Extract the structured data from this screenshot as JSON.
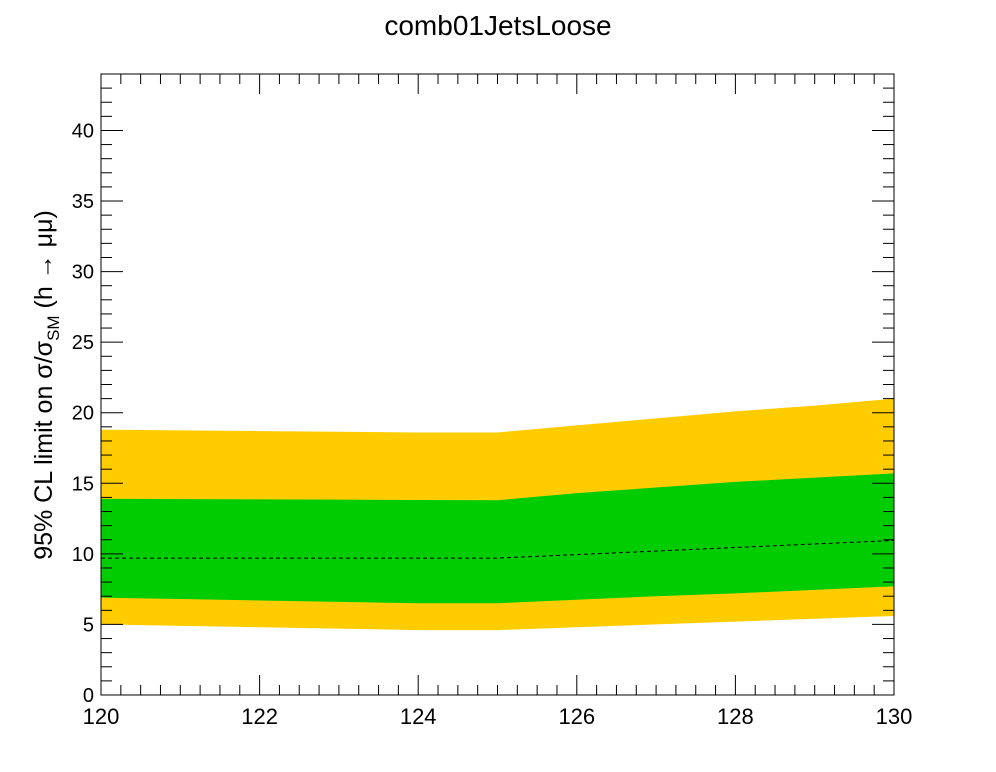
{
  "chart_data": {
    "type": "area",
    "title": "comb01JetsLoose",
    "ylabel_parts": {
      "prefix": "95% CL limit on σ/σ",
      "subscript": "SM",
      "suffix": " (h → μμ)"
    },
    "xlabel": "",
    "xlim": [
      120,
      130
    ],
    "ylim": [
      0,
      44
    ],
    "x_ticks": [
      120,
      122,
      124,
      126,
      128,
      130
    ],
    "y_ticks": [
      0,
      5,
      10,
      15,
      20,
      25,
      30,
      35,
      40
    ],
    "grid": false,
    "x": [
      120,
      121,
      122,
      123,
      124,
      125,
      126,
      127,
      128,
      129,
      130
    ],
    "series": [
      {
        "role": "band_2sigma",
        "color": "#ffcc00",
        "lower": [
          5.0,
          4.9,
          4.8,
          4.7,
          4.6,
          4.6,
          4.8,
          5.0,
          5.2,
          5.4,
          5.6
        ],
        "upper": [
          18.8,
          18.75,
          18.7,
          18.65,
          18.6,
          18.6,
          19.1,
          19.6,
          20.1,
          20.5,
          21.0
        ]
      },
      {
        "role": "band_1sigma",
        "color": "#00cc00",
        "lower": [
          6.9,
          6.8,
          6.7,
          6.6,
          6.5,
          6.5,
          6.75,
          7.0,
          7.2,
          7.45,
          7.7
        ],
        "upper": [
          13.9,
          13.88,
          13.86,
          13.84,
          13.82,
          13.8,
          14.3,
          14.7,
          15.1,
          15.4,
          15.7
        ]
      },
      {
        "role": "expected_median",
        "color": "#000000",
        "style": "dashed",
        "values": [
          9.7,
          9.7,
          9.7,
          9.7,
          9.7,
          9.7,
          9.95,
          10.2,
          10.45,
          10.7,
          10.95
        ]
      }
    ]
  }
}
